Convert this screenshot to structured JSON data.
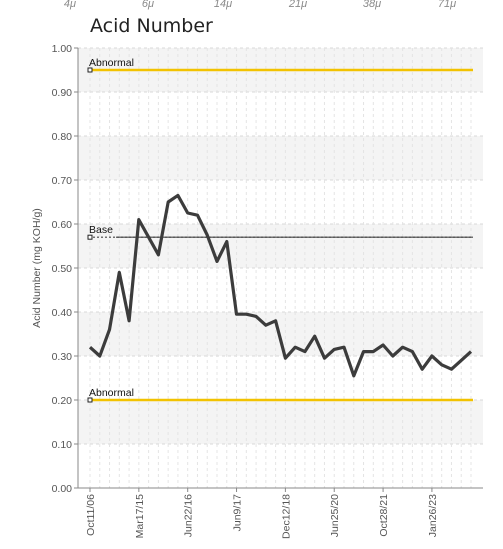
{
  "top_scale": [
    "4μ",
    "6μ",
    "14μ",
    "21μ",
    "38μ",
    "71μ"
  ],
  "chart_data": {
    "type": "line",
    "title": "Acid Number",
    "ylabel": "Acid Number (mg KOH/g)",
    "xlabel": "",
    "ylim": [
      0,
      1.0
    ],
    "y_ticks": [
      "0.00",
      "0.10",
      "0.20",
      "0.30",
      "0.40",
      "0.50",
      "0.60",
      "0.70",
      "0.80",
      "0.90",
      "1.00"
    ],
    "x_ticks": [
      "Oct11/06",
      "Mar17/15",
      "Jun22/16",
      "Jun9/17",
      "Dec12/18",
      "Jun25/20",
      "Oct28/21",
      "Jan26/23"
    ],
    "x_tick_at_index": [
      0,
      5,
      10,
      15,
      20,
      25,
      30,
      35
    ],
    "reference_lines": [
      {
        "label": "Abnormal",
        "value": 0.95,
        "color": "#f2c200",
        "style": "solid"
      },
      {
        "label": "Base",
        "value": 0.57,
        "color": "#444444",
        "style": "dotted"
      },
      {
        "label": "Abnormal",
        "value": 0.2,
        "color": "#f2c200",
        "style": "solid"
      }
    ],
    "series": [
      {
        "color": "#3c3c3c",
        "values": [
          0.32,
          0.3,
          0.36,
          0.49,
          0.38,
          0.61,
          0.57,
          0.53,
          0.65,
          0.665,
          0.625,
          0.62,
          0.575,
          0.515,
          0.56,
          0.395,
          0.395,
          0.39,
          0.37,
          0.38,
          0.295,
          0.32,
          0.31,
          0.345,
          0.295,
          0.315,
          0.32,
          0.255,
          0.31,
          0.31,
          0.325,
          0.3,
          0.32,
          0.31,
          0.27,
          0.3,
          0.28,
          0.27,
          0.29,
          0.31
        ]
      }
    ],
    "grid": true
  }
}
